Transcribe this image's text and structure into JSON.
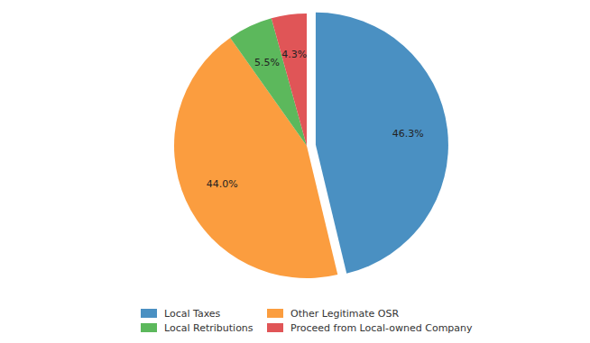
{
  "chart_data": {
    "type": "pie",
    "categories": [
      "Local Taxes",
      "Other Legitimate OSR",
      "Local Retributions",
      "Proceed from Local-owned Company"
    ],
    "values": [
      46.3,
      44.0,
      5.5,
      4.3
    ],
    "value_labels": [
      "46.3%",
      "44.0%",
      "5.5%",
      "4.3%"
    ],
    "colors": [
      "#4a90c2",
      "#fb9d3f",
      "#5cb85c",
      "#e05557"
    ],
    "data_labels": true,
    "legend": "bottom"
  }
}
